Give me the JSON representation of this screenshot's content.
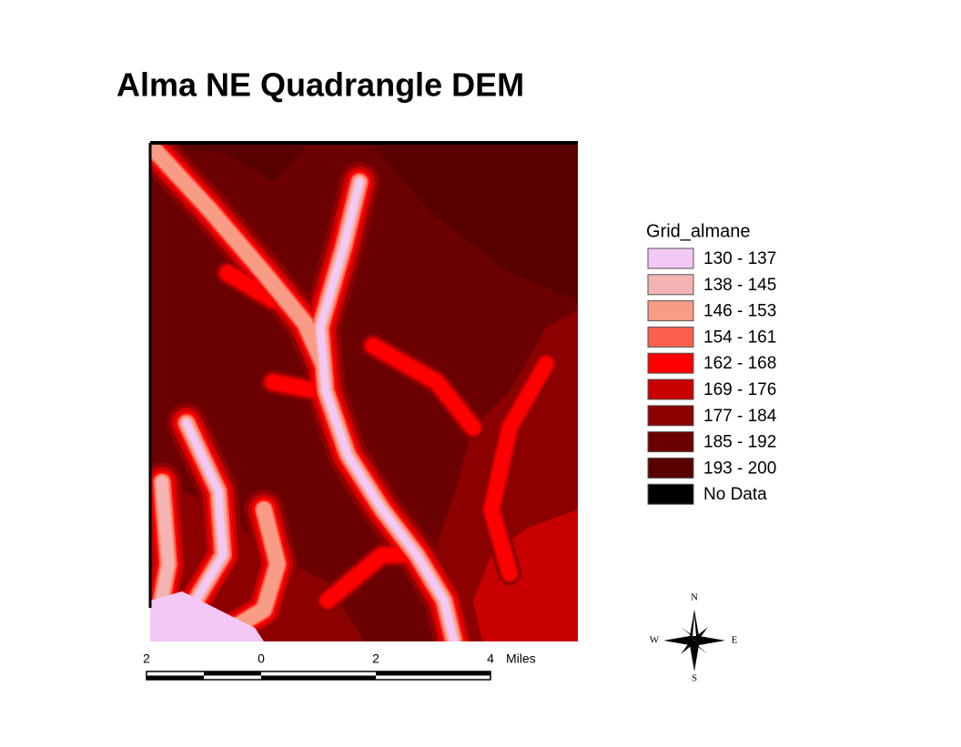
{
  "title": "Alma NE Quadrangle DEM",
  "legend": {
    "title": "Grid_almane",
    "items": [
      {
        "label": "130 - 137",
        "color": "#f4c8f4"
      },
      {
        "label": "138 - 145",
        "color": "#f5b4b4"
      },
      {
        "label": "146 - 153",
        "color": "#f89c86"
      },
      {
        "label": "154 - 161",
        "color": "#fc5f4c"
      },
      {
        "label": "162 - 168",
        "color": "#ff0000"
      },
      {
        "label": "169 - 176",
        "color": "#c80000"
      },
      {
        "label": "177 - 184",
        "color": "#8c0000"
      },
      {
        "label": "185 - 192",
        "color": "#6a0000"
      },
      {
        "label": "193 - 200",
        "color": "#580000"
      },
      {
        "label": "No Data",
        "color": "#000000"
      }
    ]
  },
  "scale_bar": {
    "labels": [
      "2",
      "0",
      "2",
      "4"
    ],
    "unit": "Miles"
  },
  "compass": {
    "north": "N",
    "south": "S",
    "east": "E",
    "west": "W"
  }
}
